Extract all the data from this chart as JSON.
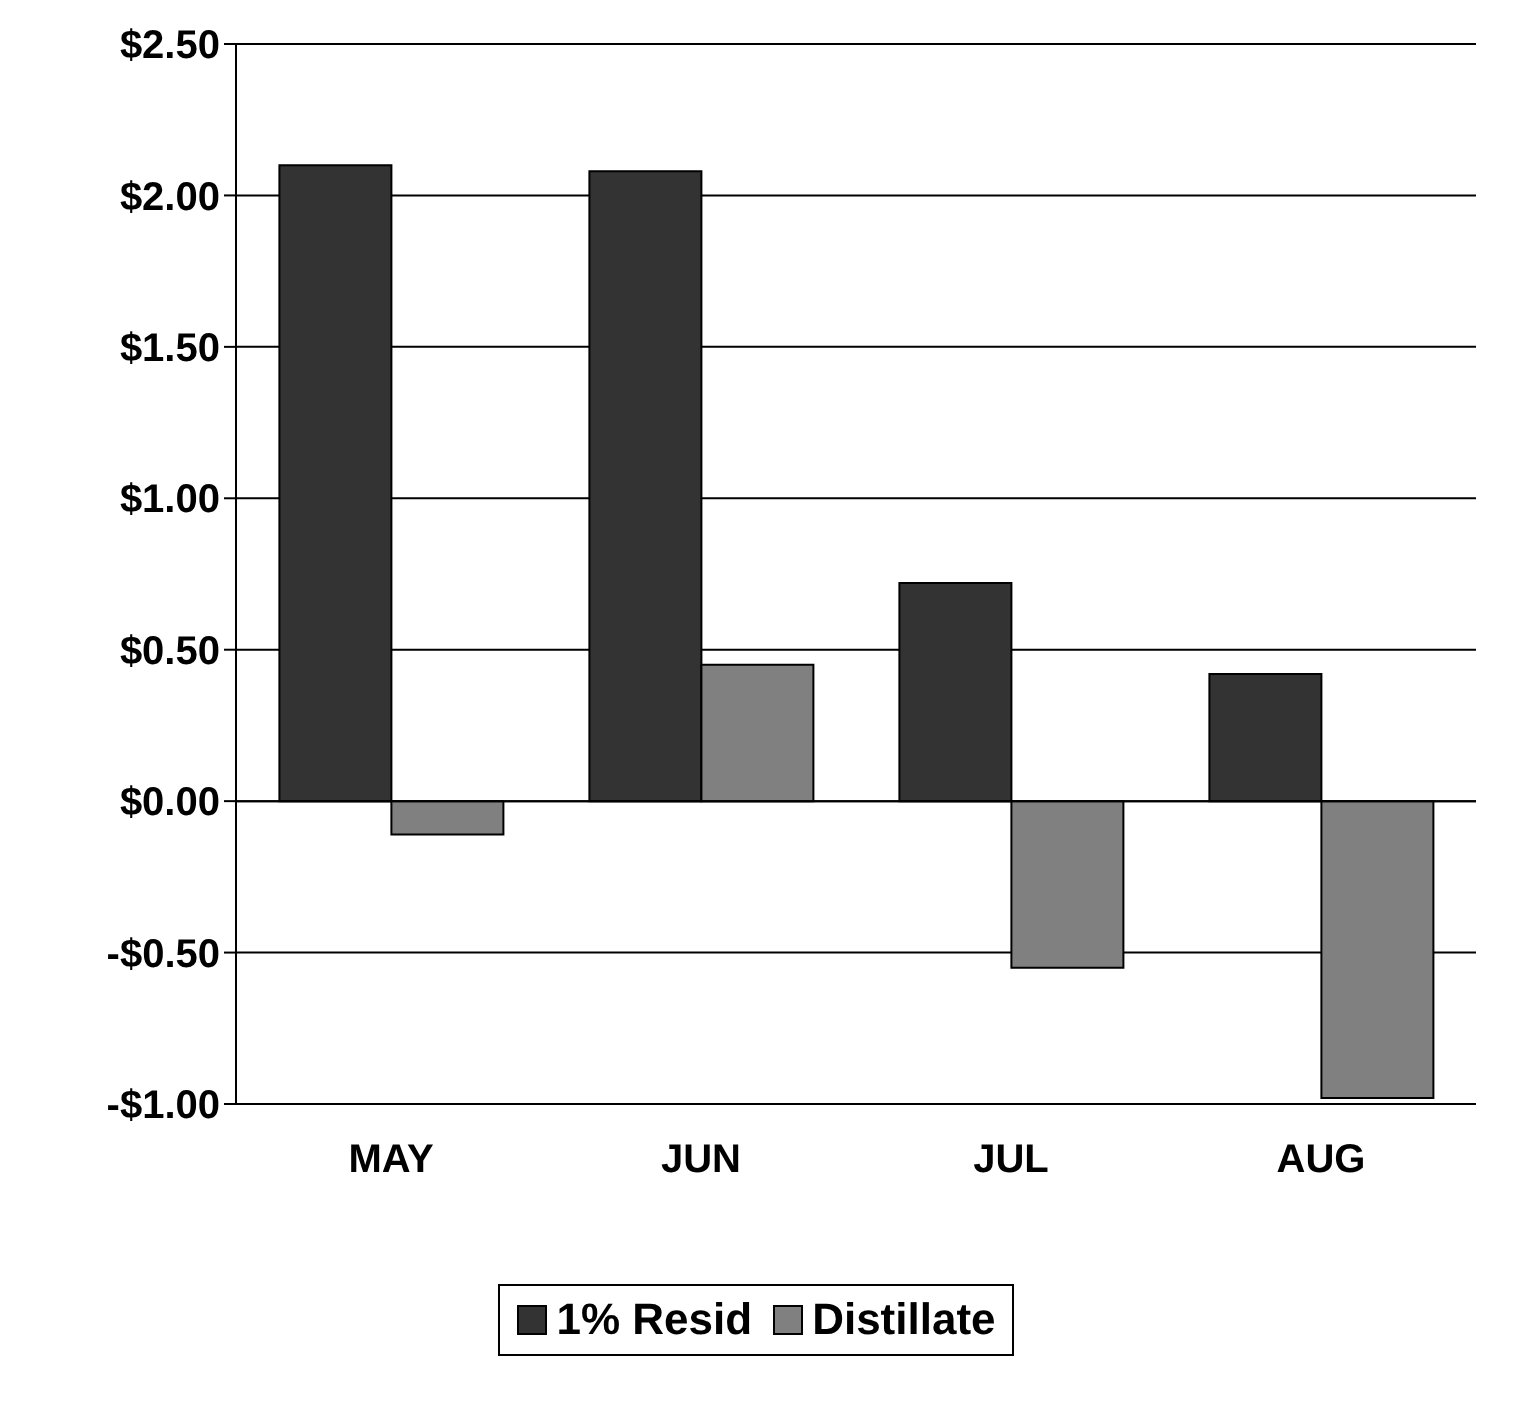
{
  "chart_data": {
    "type": "bar",
    "categories": [
      "MAY",
      "JUN",
      "JUL",
      "AUG"
    ],
    "series": [
      {
        "name": "1% Resid",
        "color": "#333333",
        "values": [
          2.1,
          2.08,
          0.72,
          0.42
        ]
      },
      {
        "name": "Distillate",
        "color": "#808080",
        "values": [
          -0.11,
          0.45,
          -0.55,
          -0.98
        ]
      }
    ],
    "ylim": [
      -1,
      2.5
    ],
    "yticks": [
      {
        "value": -1,
        "label": "-$1.00"
      },
      {
        "value": -0.5,
        "label": "-$0.50"
      },
      {
        "value": 0,
        "label": "$0.00"
      },
      {
        "value": 0.5,
        "label": "$0.50"
      },
      {
        "value": 1,
        "label": "$1.00"
      },
      {
        "value": 1.5,
        "label": "$1.50"
      },
      {
        "value": 2,
        "label": "$2.00"
      },
      {
        "value": 2.5,
        "label": "$2.50"
      }
    ],
    "grid": "y",
    "legend": "bottom"
  }
}
